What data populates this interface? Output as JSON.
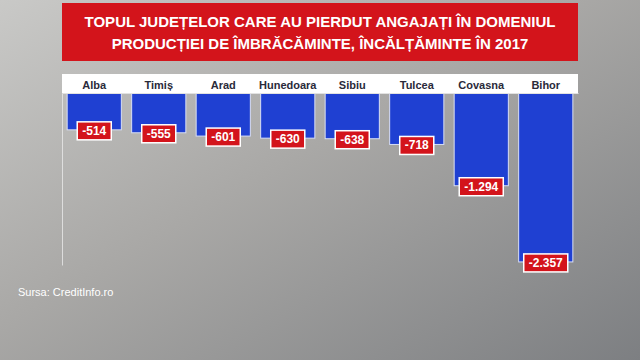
{
  "chart_data": {
    "type": "bar",
    "title": [
      "TOPUL JUDEȚELOR CARE AU PIERDUT ANGAJAȚI ÎN DOMENIUL",
      "PRODUCȚIEI DE ÎMBRĂCĂMINTE, ÎNCĂLȚĂMINTE ÎN 2017"
    ],
    "categories": [
      "Alba",
      "Timiș",
      "Arad",
      "Hunedoara",
      "Sibiu",
      "Tulcea",
      "Covasna",
      "Bihor"
    ],
    "values": [
      -514,
      -555,
      -601,
      -630,
      -638,
      -718,
      -1294,
      -2357
    ],
    "value_labels": [
      "-514",
      "-555",
      "-601",
      "-630",
      "-638",
      "-718",
      "-1.294",
      "-2.357"
    ],
    "color": "#1f40d2",
    "ylim": [
      -2400,
      0
    ],
    "data_labels": true,
    "tick_labels": "x",
    "grid": false,
    "source": "Sursa: CreditInfo.ro"
  }
}
